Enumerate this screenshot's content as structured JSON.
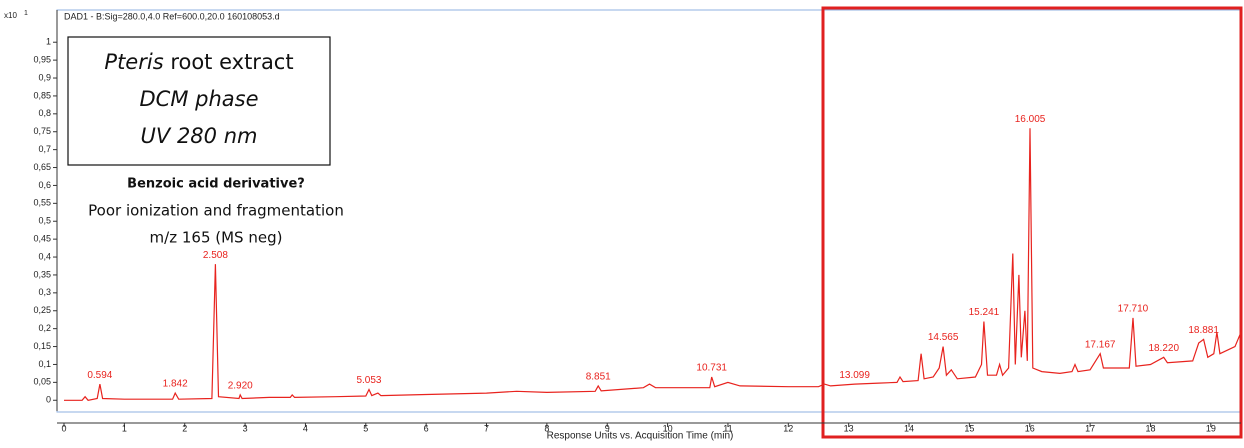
{
  "chart_data": {
    "type": "line",
    "title": "DAD1 - B:Sig=280.0,4.0  Ref=600.0,20.0  160108053.d",
    "y_multiplier": "x10",
    "y_exponent": "1",
    "xlabel": "Response Units vs. Acquisition Time (min)",
    "annotations": {
      "box": [
        "Pteris",
        " root extract",
        "DCM phase",
        "UV 280 nm"
      ],
      "note_title": "Benzoic acid derivative?",
      "note_lines": [
        "Poor ionization and fragmentation",
        "m/z 165 (MS neg)"
      ]
    },
    "xlim": [
      0,
      19.5
    ],
    "ylim": [
      -0.03,
      1.09
    ],
    "xticks": [
      0,
      1,
      2,
      3,
      4,
      5,
      6,
      7,
      8,
      9,
      10,
      11,
      12,
      13,
      14,
      15,
      16,
      17,
      18,
      19
    ],
    "yticks": [
      0,
      {
        "value": 0.05,
        "label": "0,05"
      },
      {
        "value": 0.1,
        "label": "0,1"
      },
      {
        "value": 0.15,
        "label": "0,15"
      },
      {
        "value": 0.2,
        "label": "0,2"
      },
      {
        "value": 0.25,
        "label": "0,25"
      },
      {
        "value": 0.3,
        "label": "0,3"
      },
      {
        "value": 0.35,
        "label": "0,35"
      },
      {
        "value": 0.4,
        "label": "0,4"
      },
      {
        "value": 0.45,
        "label": "0,45"
      },
      {
        "value": 0.5,
        "label": "0,5"
      },
      {
        "value": 0.55,
        "label": "0,55"
      },
      {
        "value": 0.6,
        "label": "0,6"
      },
      {
        "value": 0.65,
        "label": "0,65"
      },
      {
        "value": 0.7,
        "label": "0,7"
      },
      {
        "value": 0.75,
        "label": "0,75"
      },
      {
        "value": 0.8,
        "label": "0,8"
      },
      {
        "value": 0.85,
        "label": "0,85"
      },
      {
        "value": 0.9,
        "label": "0,9"
      },
      {
        "value": 0.95,
        "label": "0,95"
      },
      1
    ],
    "series": [
      {
        "color": "#e8231e",
        "x": [
          0,
          0.3,
          0.35,
          0.4,
          0.55,
          0.594,
          0.64,
          1.0,
          1.8,
          1.842,
          1.9,
          2.45,
          2.508,
          2.56,
          2.9,
          2.92,
          2.95,
          3.4,
          3.75,
          3.78,
          3.82,
          4.5,
          5.0,
          5.053,
          5.1,
          5.2,
          5.25,
          6,
          7,
          7.5,
          8,
          8.8,
          8.851,
          8.9,
          9.6,
          9.7,
          9.8,
          10.7,
          10.731,
          10.78,
          11,
          11.2,
          12,
          12.5,
          12.6,
          12.7,
          13.1,
          13.5,
          13.8,
          13.85,
          13.9,
          14.15,
          14.2,
          14.25,
          14.4,
          14.5,
          14.565,
          14.62,
          14.7,
          14.8,
          15.1,
          15.2,
          15.241,
          15.3,
          15.45,
          15.5,
          15.55,
          15.65,
          15.72,
          15.76,
          15.82,
          15.86,
          15.92,
          15.96,
          16.005,
          16.05,
          16.2,
          16.5,
          16.7,
          16.75,
          16.8,
          17.0,
          17.167,
          17.22,
          17.65,
          17.71,
          17.76,
          18.0,
          18.22,
          18.28,
          18.7,
          18.8,
          18.881,
          18.95,
          19.05,
          19.1,
          19.15,
          19.4,
          19.5
        ],
        "values": [
          0,
          0,
          0.01,
          0,
          0.005,
          0.045,
          0.005,
          0.003,
          0.003,
          0.02,
          0.003,
          0.005,
          0.38,
          0.01,
          0.005,
          0.015,
          0.005,
          0.008,
          0.008,
          0.015,
          0.008,
          0.01,
          0.012,
          0.03,
          0.013,
          0.02,
          0.013,
          0.016,
          0.02,
          0.025,
          0.022,
          0.025,
          0.04,
          0.026,
          0.035,
          0.045,
          0.035,
          0.035,
          0.065,
          0.038,
          0.05,
          0.04,
          0.038,
          0.038,
          0.045,
          0.04,
          0.045,
          0.048,
          0.05,
          0.065,
          0.052,
          0.055,
          0.13,
          0.06,
          0.065,
          0.09,
          0.15,
          0.07,
          0.085,
          0.06,
          0.065,
          0.1,
          0.22,
          0.07,
          0.07,
          0.1,
          0.07,
          0.09,
          0.41,
          0.1,
          0.35,
          0.12,
          0.25,
          0.11,
          0.76,
          0.09,
          0.08,
          0.075,
          0.08,
          0.1,
          0.08,
          0.085,
          0.13,
          0.09,
          0.09,
          0.23,
          0.095,
          0.1,
          0.12,
          0.105,
          0.11,
          0.16,
          0.17,
          0.12,
          0.13,
          0.19,
          0.13,
          0.15,
          0.19
        ]
      }
    ],
    "peaks": {
      "x": [
        0.594,
        1.842,
        2.508,
        2.92,
        5.053,
        8.851,
        10.731,
        13.099,
        14.565,
        15.241,
        16.005,
        17.167,
        17.71,
        18.22,
        18.881
      ],
      "y": [
        0.045,
        0.02,
        0.38,
        0.015,
        0.03,
        0.04,
        0.065,
        0.045,
        0.15,
        0.22,
        0.76,
        0.13,
        0.23,
        0.12,
        0.17
      ],
      "labels": [
        "0.594",
        "1.842",
        "2.508",
        "2.920",
        "5.053",
        "8.851",
        "10.731",
        "13.099",
        "14.565",
        "15.241",
        "16.005",
        "17.167",
        "17.710",
        "18.220",
        "18.881"
      ]
    }
  }
}
